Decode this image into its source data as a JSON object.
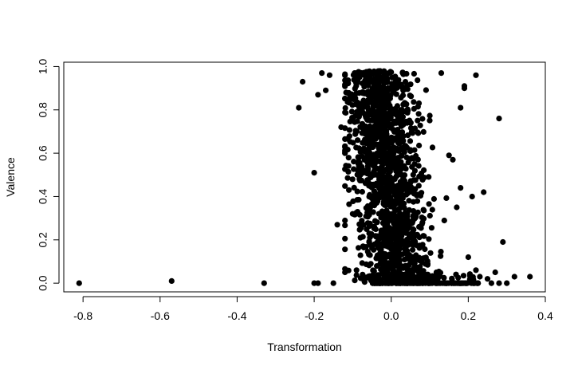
{
  "chart_data": {
    "type": "scatter",
    "title": "",
    "xlabel": "Transformation",
    "ylabel": "Valence",
    "xlim": [
      -0.85,
      0.4
    ],
    "ylim": [
      -0.04,
      1.02
    ],
    "xticks": [
      -0.8,
      -0.6,
      -0.4,
      -0.2,
      0.0,
      0.2,
      0.4
    ],
    "xtick_labels": [
      "-0.8",
      "-0.6",
      "-0.4",
      "-0.2",
      "0.0",
      "0.2",
      "0.4"
    ],
    "yticks": [
      0.0,
      0.2,
      0.4,
      0.6,
      0.8,
      1.0
    ],
    "ytick_labels": [
      "0.0",
      "0.2",
      "0.4",
      "0.6",
      "0.8",
      "1.0"
    ],
    "grid": false,
    "legend": "none",
    "marker_color": "#000000",
    "points": [
      [
        -0.81,
        0.0
      ],
      [
        -0.57,
        0.01
      ],
      [
        -0.33,
        0.0
      ],
      [
        -0.2,
        0.0
      ],
      [
        -0.19,
        0.0
      ],
      [
        -0.24,
        0.81
      ],
      [
        -0.23,
        0.93
      ],
      [
        -0.2,
        0.51
      ],
      [
        -0.19,
        0.87
      ],
      [
        -0.18,
        0.97
      ],
      [
        -0.17,
        0.89
      ],
      [
        -0.16,
        0.96
      ],
      [
        -0.15,
        0.0
      ],
      [
        -0.14,
        0.27
      ],
      [
        -0.13,
        0.72
      ],
      [
        -0.12,
        0.05
      ],
      [
        -0.12,
        0.6
      ],
      [
        -0.11,
        0.43
      ],
      [
        -0.1,
        0.32
      ],
      [
        -0.1,
        0.85
      ],
      [
        -0.09,
        0.06
      ],
      [
        -0.09,
        0.97
      ],
      [
        -0.08,
        0.21
      ],
      [
        -0.08,
        0.5
      ],
      [
        0.13,
        0.97
      ],
      [
        0.15,
        0.59
      ],
      [
        0.16,
        0.57
      ],
      [
        0.17,
        0.35
      ],
      [
        0.18,
        0.81
      ],
      [
        0.18,
        0.44
      ],
      [
        0.19,
        0.9
      ],
      [
        0.19,
        0.91
      ],
      [
        0.2,
        0.12
      ],
      [
        0.21,
        0.4
      ],
      [
        0.22,
        0.06
      ],
      [
        0.22,
        0.96
      ],
      [
        0.24,
        0.42
      ],
      [
        0.27,
        0.05
      ],
      [
        0.28,
        0.76
      ],
      [
        0.29,
        0.19
      ],
      [
        0.28,
        0.0
      ],
      [
        0.3,
        0.0
      ],
      [
        0.32,
        0.03
      ],
      [
        0.36,
        0.03
      ],
      [
        0.25,
        0.02
      ],
      [
        0.23,
        0.03
      ],
      [
        0.26,
        0.0
      ]
    ]
  }
}
